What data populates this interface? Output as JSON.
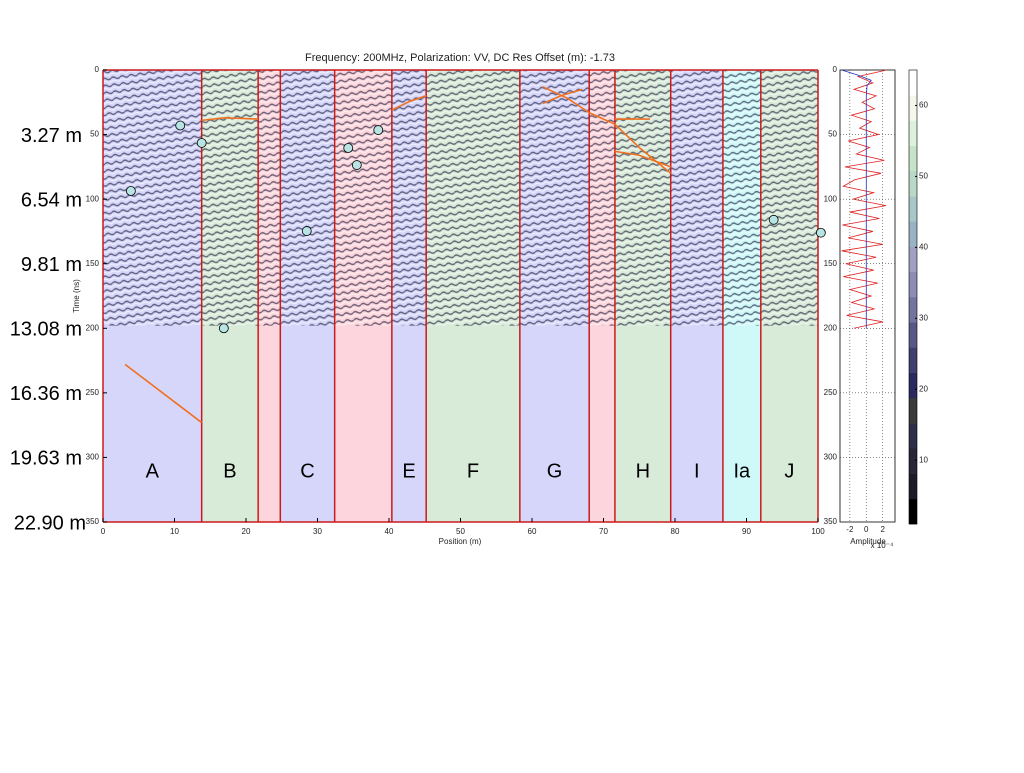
{
  "chart_data": {
    "type": "radargram",
    "title": "Frequency: 200MHz,  Polarization: VV,  DC Res Offset (m): -1.73",
    "xlabel": "Position (m)",
    "ylabel": "Time (ns)",
    "xlim": [
      0,
      100
    ],
    "xticks": [
      0,
      10,
      20,
      30,
      40,
      50,
      60,
      70,
      80,
      90,
      100
    ],
    "ylim": [
      0,
      350
    ],
    "yticks": [
      0,
      50,
      100,
      150,
      200,
      250,
      300,
      350
    ],
    "radar_depth_max": 198,
    "depth_ticks": [
      {
        "value": 50,
        "label": "3.27 m"
      },
      {
        "value": 100,
        "label": "6.54 m"
      },
      {
        "value": 150,
        "label": "9.81 m"
      },
      {
        "value": 200,
        "label": "13.08 m"
      },
      {
        "value": 250,
        "label": "16.36 m"
      },
      {
        "value": 300,
        "label": "19.63 m"
      },
      {
        "value": 350,
        "label": "22.90 m"
      }
    ],
    "zones": {
      "bounds": [
        0,
        13.8,
        21.7,
        24.8,
        32.4,
        40.4,
        45.2,
        58.3,
        68.0,
        71.6,
        79.4,
        86.7,
        92.0,
        100
      ],
      "labels": [
        "A",
        "B",
        null,
        "C",
        null,
        "E",
        "F",
        "G",
        null,
        "H",
        "I",
        "Ia",
        "J"
      ],
      "colors": [
        "#d6d6fa",
        "#d8ead8",
        "#fcd6dc",
        "#d6d6fa",
        "#fcd6dc",
        "#d6d6fa",
        "#d8ead8",
        "#d6d6fa",
        "#fcd6dc",
        "#d8ead8",
        "#d6d6fa",
        "#cff8f8",
        "#d8ead8"
      ],
      "boundary_color": "#cc1a1a"
    },
    "markers": {
      "x": [
        10.8,
        13.8,
        3.9,
        16.9,
        28.5,
        34.3,
        35.5,
        38.5,
        93.8,
        100.4
      ],
      "y": [
        43,
        56.5,
        93.7,
        200,
        124.7,
        60.4,
        73.6,
        46.5,
        116,
        126
      ],
      "color": "#b8e4e4"
    },
    "reflectors": [
      {
        "x": [
          13.8,
          17,
          21.7
        ],
        "y": [
          39,
          37,
          38
        ]
      },
      {
        "x": [
          40.4,
          43,
          45.2
        ],
        "y": [
          31,
          24,
          20
        ]
      },
      {
        "x": [
          61.5,
          65,
          68,
          71.6,
          75,
          79.4
        ],
        "y": [
          13,
          22,
          33,
          42,
          60,
          80
        ]
      },
      {
        "x": [
          61.5,
          64,
          67
        ],
        "y": [
          26,
          20,
          15
        ]
      },
      {
        "x": [
          71.6,
          76.5
        ],
        "y": [
          38,
          38
        ]
      },
      {
        "x": [
          71.6,
          75,
          79.4
        ],
        "y": [
          63,
          66,
          75
        ]
      },
      {
        "x": [
          3.1,
          13.8
        ],
        "y": [
          228,
          273
        ]
      }
    ],
    "reflector_color": "#f07020",
    "amplitude": {
      "label": "Amplitude",
      "exponent": "x 10⁻⁴",
      "xlim": [
        -3.2,
        3.5
      ],
      "xticks": [
        -2,
        0,
        2
      ],
      "yticks": [
        0,
        50,
        100,
        150,
        200,
        250,
        300,
        350
      ],
      "time": [
        0,
        5,
        10,
        15,
        20,
        25,
        30,
        35,
        40,
        45,
        50,
        55,
        60,
        65,
        70,
        75,
        80,
        85,
        90,
        95,
        100,
        105,
        110,
        115,
        120,
        125,
        130,
        135,
        140,
        145,
        150,
        155,
        160,
        165,
        170,
        175,
        180,
        185,
        190,
        195,
        200
      ],
      "values": [
        2.5,
        -1,
        0.8,
        -1.5,
        1.2,
        -0.5,
        1,
        -1.8,
        0.6,
        -0.8,
        1.5,
        -2.2,
        0.4,
        -1.2,
        2.2,
        -2.6,
        1.8,
        -1.4,
        -2.8,
        0.9,
        -1.6,
        2.4,
        -2.0,
        1.6,
        -2.9,
        0.8,
        -2.2,
        2.0,
        -3.0,
        1.2,
        -2.5,
        0.9,
        -2.8,
        1.4,
        -2.0,
        0.6,
        -1.8,
        1.0,
        -2.4,
        2.0,
        -1.5
      ],
      "color": "#e02020",
      "ref_time": [
        0,
        4,
        8,
        12,
        20,
        40,
        80,
        120,
        160,
        200
      ],
      "ref_values": [
        -3,
        -1,
        0.6,
        0.1,
        0,
        0,
        0,
        0,
        0,
        0
      ],
      "ref_color": "#2030c0"
    },
    "colorbar": {
      "clim": [
        1,
        65
      ],
      "ticks": [
        10,
        20,
        30,
        40,
        50,
        60
      ],
      "colors": [
        "#000000",
        "#1c1c28",
        "#262638",
        "#2e2e48",
        "#3a3a3a",
        "#2a2a60",
        "#404070",
        "#585888",
        "#7474a0",
        "#8c8cb4",
        "#a0a0c4",
        "#98b4c4",
        "#a8c8c8",
        "#b8d8c8",
        "#c8e4c8",
        "#dcf0dc",
        "#f4f8ec",
        "#ffffff"
      ]
    }
  }
}
